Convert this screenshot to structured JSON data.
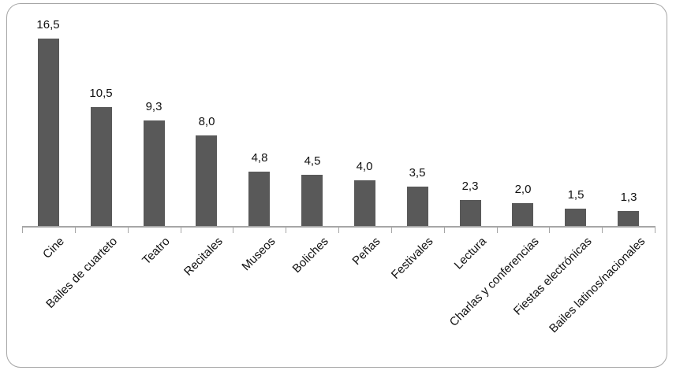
{
  "chart_data": {
    "type": "bar",
    "title": "",
    "xlabel": "",
    "ylabel": "",
    "categories": [
      "Cine",
      "Bailes de cuarteto",
      "Teatro",
      "Recitales",
      "Museos",
      "Boliches",
      "Peñas",
      "Festivales",
      "Lectura",
      "Charlas y conferencias",
      "Fiestas electrónicas",
      "Bailes latinos/nacionales"
    ],
    "values": [
      16.5,
      10.5,
      9.3,
      8.0,
      4.8,
      4.5,
      4.0,
      3.5,
      2.3,
      2.0,
      1.5,
      1.3
    ],
    "value_labels": [
      "16,5",
      "10,5",
      "9,3",
      "8,0",
      "4,8",
      "4,5",
      "4,0",
      "3,5",
      "2,3",
      "2,0",
      "1,5",
      "1,3"
    ],
    "ylim": [
      0,
      17.5
    ],
    "grid": "off",
    "legend": "none",
    "decimal_separator": ",",
    "category_label_rotation_deg": 45,
    "colors": {
      "bar": "#595959",
      "axis": "#a6a6a6",
      "text": "#111111",
      "frame_border": "#a6a6a6",
      "background": "#ffffff"
    }
  }
}
